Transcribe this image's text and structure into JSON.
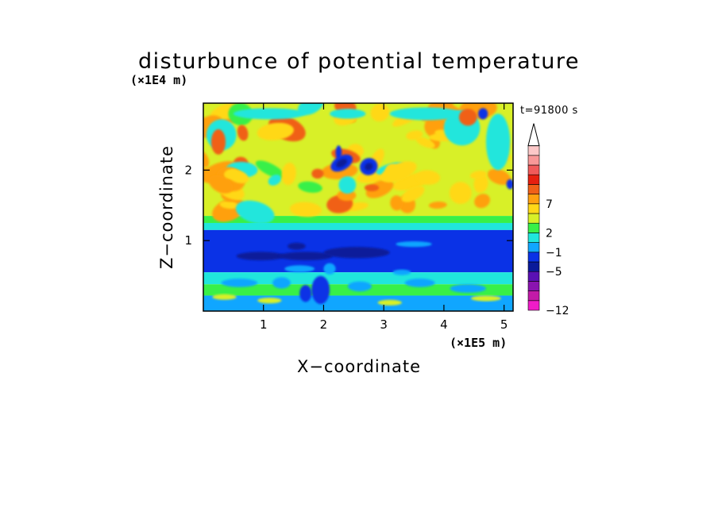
{
  "chart_data": {
    "type": "heatmap",
    "title": "disturbunce of potential temperature",
    "time_label": "t=91800 s",
    "xlabel": "X−coordinate",
    "ylabel": "Z−coordinate",
    "x_unit": "(×1E5 m)",
    "y_unit": "(×1E4 m)",
    "xlim": [
      0,
      5.15
    ],
    "ylim": [
      0,
      2.95
    ],
    "xticks": [
      1,
      2,
      3,
      4,
      5
    ],
    "xtick_labels": [
      "1",
      "2",
      "3",
      "4",
      "5"
    ],
    "yticks": [
      1,
      2
    ],
    "ytick_labels": [
      "1",
      "2"
    ],
    "colorbar": {
      "labels": [
        {
          "index": 0,
          "text": "−12"
        },
        {
          "index": 4,
          "text": "−5"
        },
        {
          "index": 6,
          "text": "−1"
        },
        {
          "index": 8,
          "text": "2"
        },
        {
          "index": 11,
          "text": "7"
        }
      ],
      "colors": [
        "#f01cc8",
        "#c21aa8",
        "#8a14b0",
        "#5a10b4",
        "#0a1a9a",
        "#0a32e6",
        "#10a6ff",
        "#20e6dc",
        "#38f048",
        "#d8f028",
        "#ffd818",
        "#ffa010",
        "#f06018",
        "#e62010",
        "#f05a5a",
        "#f89898",
        "#fcc8c8"
      ],
      "extend": "max"
    },
    "field_description_levels": {
      "background_upper": 8,
      "tropopause_band_zmax": 1.25,
      "cold_core_level": 4
    }
  }
}
